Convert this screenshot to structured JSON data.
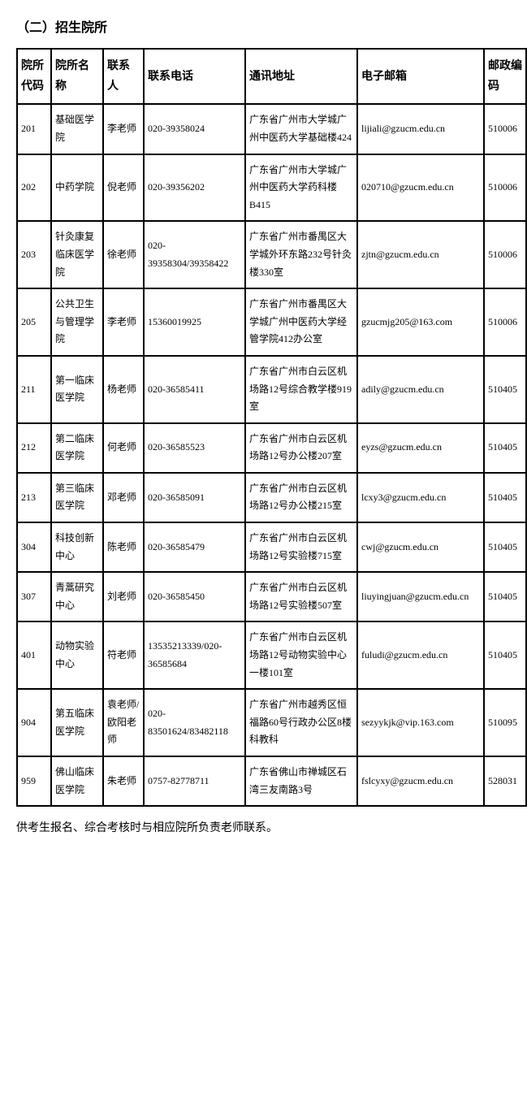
{
  "title": "（二）招生院所",
  "table": {
    "headers": {
      "code": "院所代码",
      "name": "院所名称",
      "contact": "联系人",
      "phone": "联系电话",
      "address": "通讯地址",
      "email": "电子邮箱",
      "zip": "邮政编码"
    },
    "rows": [
      {
        "code": "201",
        "name": "基础医学院",
        "contact": "李老师",
        "phone": "020-39358024",
        "address": "广东省广州市大学城广州中医药大学基础楼424",
        "email": "lijiali@gzucm.edu.cn",
        "zip": "510006"
      },
      {
        "code": "202",
        "name": "中药学院",
        "contact": "倪老师",
        "phone": "020-39356202",
        "address": "广东省广州市大学城广州中医药大学药科楼B415",
        "email": "020710@gzucm.edu.cn",
        "zip": "510006"
      },
      {
        "code": "203",
        "name": "针灸康复临床医学院",
        "contact": "徐老师",
        "phone": "020-39358304/39358422",
        "address": "广东省广州市番禺区大学城外环东路232号针灸楼330室",
        "email": "zjtn@gzucm.edu.cn",
        "zip": "510006"
      },
      {
        "code": "205",
        "name": "公共卫生与管理学院",
        "contact": "李老师",
        "phone": "15360019925",
        "address": "广东省广州市番禺区大学城广州中医药大学经管学院412办公室",
        "email": "gzucmjg205@163.com",
        "zip": "510006"
      },
      {
        "code": "211",
        "name": "第一临床医学院",
        "contact": "杨老师",
        "phone": "020-36585411",
        "address": "广东省广州市白云区机场路12号综合教学楼919室",
        "email": "adily@gzucm.edu.cn",
        "zip": "510405"
      },
      {
        "code": "212",
        "name": "第二临床医学院",
        "contact": "何老师",
        "phone": "020-36585523",
        "address": "广东省广州市白云区机场路12号办公楼207室",
        "email": "eyzs@gzucm.edu.cn",
        "zip": "510405"
      },
      {
        "code": "213",
        "name": "第三临床医学院",
        "contact": "邓老师",
        "phone": "020-36585091",
        "address": "广东省广州市白云区机场路12号办公楼215室",
        "email": "lcxy3@gzucm.edu.cn",
        "zip": "510405"
      },
      {
        "code": "304",
        "name": "科技创新中心",
        "contact": "陈老师",
        "phone": "020-36585479",
        "address": "广东省广州市白云区机场路12号实验楼715室",
        "email": "cwj@gzucm.edu.cn",
        "zip": "510405"
      },
      {
        "code": "307",
        "name": "青蒿研究中心",
        "contact": "刘老师",
        "phone": "020-36585450",
        "address": "广东省广州市白云区机场路12号实验楼507室",
        "email": "liuyingjuan@gzucm.edu.cn",
        "zip": "510405"
      },
      {
        "code": "401",
        "name": "动物实验中心",
        "contact": "符老师",
        "phone": "13535213339/020-36585684",
        "address": "广东省广州市白云区机场路12号动物实验中心一楼101室",
        "email": "fuludi@gzucm.edu.cn",
        "zip": "510405"
      },
      {
        "code": "904",
        "name": "第五临床医学院",
        "contact": "袁老师/欧阳老师",
        "phone": "020-83501624/83482118",
        "address": "广东省广州市越秀区恒福路60号行政办公区8楼科教科",
        "email": "sezyykjk@vip.163.com",
        "zip": "510095"
      },
      {
        "code": "959",
        "name": "佛山临床医学院",
        "contact": "朱老师",
        "phone": "0757-82778711",
        "address": "广东省佛山市禅城区石湾三友南路3号",
        "email": "fslcyxy@gzucm.edu.cn",
        "zip": "528031"
      }
    ]
  },
  "footer": "供考生报名、综合考核时与相应院所负责老师联系。",
  "styling": {
    "border_color": "#000000",
    "border_width": "2px",
    "background": "#ffffff",
    "text_color": "#000000",
    "title_fontsize": "16px",
    "cell_fontsize": "12px",
    "header_fontsize": "14px",
    "footer_fontsize": "14px"
  }
}
